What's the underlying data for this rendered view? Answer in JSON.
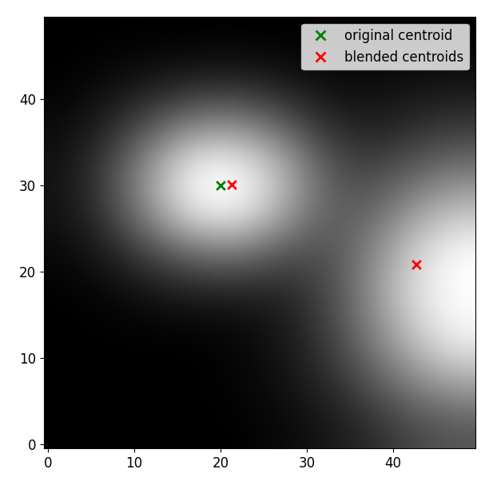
{
  "chart_data": {
    "type": "heatmap",
    "cells": [
      [
        0,
        0,
        0,
        0,
        0,
        0.03,
        0.08,
        0.16,
        0.27,
        0.33
      ],
      [
        0,
        0,
        0,
        0,
        0.02,
        0.06,
        0.15,
        0.31,
        0.5,
        0.64
      ],
      [
        0,
        0,
        0,
        0,
        0.02,
        0.08,
        0.22,
        0.46,
        0.74,
        0.95
      ],
      [
        0,
        0.02,
        0.06,
        0.09,
        0.1,
        0.12,
        0.26,
        0.53,
        0.86,
        1
      ],
      [
        0.03,
        0.11,
        0.27,
        0.41,
        0.44,
        0.32,
        0.29,
        0.5,
        0.81,
        1
      ],
      [
        0.07,
        0.25,
        0.6,
        0.95,
        0.99,
        0.69,
        0.38,
        0.38,
        0.59,
        0.76
      ],
      [
        0.07,
        0.27,
        0.64,
        1,
        1,
        0.74,
        0.36,
        0.25,
        0.35,
        0.45
      ],
      [
        0.04,
        0.14,
        0.33,
        0.52,
        0.54,
        0.37,
        0.18,
        0.11,
        0.16,
        0.21
      ],
      [
        0,
        0.04,
        0.08,
        0.12,
        0.13,
        0.09,
        0.04,
        0.04,
        0.06,
        0.07
      ],
      [
        0,
        0,
        0,
        0,
        0,
        0,
        0,
        0,
        0,
        0
      ]
    ],
    "series": [
      {
        "name": "original centroid",
        "type": "scatter",
        "color": "green",
        "marker": "x",
        "x": [
          20
        ],
        "y": [
          30
        ]
      },
      {
        "name": "blended centroids",
        "type": "scatter",
        "color": "red",
        "marker": "x",
        "x": [
          21.3,
          42.7
        ],
        "y": [
          30.1,
          20.8
        ]
      }
    ],
    "xlim": [
      -0.5,
      49.5
    ],
    "ylim": [
      -0.5,
      49.5
    ],
    "xticks": [
      0,
      10,
      20,
      30,
      40
    ],
    "yticks": [
      0,
      10,
      20,
      30,
      40
    ],
    "legend": "upper right"
  }
}
